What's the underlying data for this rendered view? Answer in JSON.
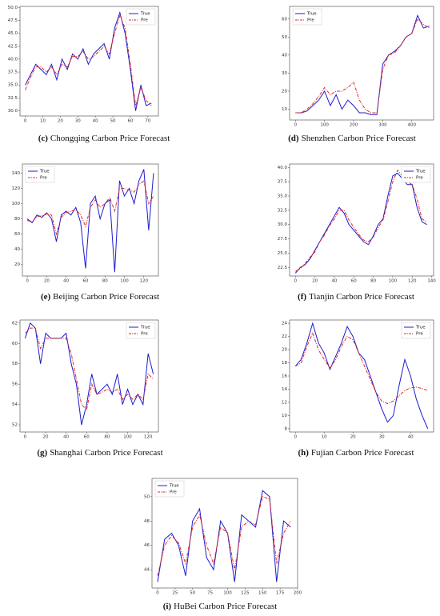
{
  "chart_data": [
    {
      "type": "line",
      "label": "(c)",
      "caption": "Chongqing Carbon Price Forecast",
      "legend": "upper right",
      "x": [
        0,
        3,
        6,
        9,
        12,
        15,
        18,
        21,
        24,
        27,
        30,
        33,
        36,
        39,
        42,
        45,
        48,
        51,
        54,
        57,
        60,
        63,
        66,
        69,
        72
      ],
      "series": [
        {
          "name": "True",
          "color": "#1c1cd0",
          "values": [
            35,
            37,
            39,
            38,
            37,
            39,
            36,
            40,
            38,
            41,
            40,
            42,
            39,
            41,
            42,
            43,
            40,
            46,
            49,
            45,
            38,
            30,
            35,
            31,
            31.5
          ]
        },
        {
          "name": "Pre",
          "color": "#e02828",
          "values": [
            34,
            36.5,
            38.5,
            38.5,
            37.5,
            38.5,
            37,
            39,
            38.5,
            40.5,
            40.5,
            41.5,
            40,
            40.5,
            41.5,
            42.5,
            41,
            45,
            48.5,
            46,
            39,
            31,
            34.5,
            32,
            31
          ]
        }
      ],
      "xlim": [
        -3,
        76
      ],
      "xticks": [
        0,
        10,
        20,
        30,
        40,
        50,
        60,
        70
      ],
      "ylim": [
        29,
        50.2
      ],
      "yticks": [
        {
          "value": 30,
          "label": "30.0"
        },
        32.5,
        {
          "value": 35,
          "label": "35.0"
        },
        37.5,
        {
          "value": 40,
          "label": "40.0"
        },
        42.5,
        {
          "value": 45,
          "label": "45.0"
        },
        47.5,
        {
          "value": 50,
          "label": "50.0"
        }
      ]
    },
    {
      "type": "line",
      "label": "(d)",
      "caption": "Shenzhen Carbon Price Forecast",
      "legend": "upper left",
      "x": [
        0,
        20,
        40,
        60,
        80,
        100,
        120,
        140,
        160,
        180,
        200,
        220,
        240,
        260,
        280,
        300,
        320,
        340,
        360,
        380,
        400,
        420,
        440,
        460
      ],
      "series": [
        {
          "name": "True",
          "color": "#1c1cd0",
          "values": [
            8,
            8,
            9,
            12,
            15,
            20,
            12,
            18,
            10,
            15,
            12,
            8,
            8,
            7,
            7,
            35,
            40,
            42,
            45,
            50,
            52,
            62,
            55,
            56
          ]
        },
        {
          "name": "Pre",
          "color": "#e02828",
          "values": [
            8,
            8,
            10,
            13,
            17,
            22,
            18,
            20,
            20,
            22,
            25,
            15,
            10,
            8,
            8,
            32,
            40,
            41,
            45,
            50,
            52,
            60,
            57,
            55
          ]
        }
      ],
      "xlim": [
        -20,
        475
      ],
      "xticks": [
        0,
        100,
        200,
        300,
        400
      ],
      "ylim": [
        4,
        67
      ],
      "yticks": [
        10,
        20,
        30,
        40,
        50,
        60
      ]
    },
    {
      "type": "line",
      "label": "(e)",
      "caption": "Beijing Carbon Price Forecast",
      "legend": "upper left",
      "x": [
        0,
        5,
        10,
        15,
        20,
        25,
        30,
        35,
        40,
        45,
        50,
        55,
        60,
        65,
        70,
        75,
        80,
        85,
        90,
        95,
        100,
        105,
        110,
        115,
        120,
        125,
        130
      ],
      "series": [
        {
          "name": "True",
          "color": "#1c1cd0",
          "values": [
            80,
            75,
            85,
            82,
            88,
            80,
            50,
            85,
            90,
            85,
            95,
            75,
            15,
            100,
            110,
            80,
            100,
            105,
            10,
            130,
            110,
            120,
            100,
            130,
            145,
            65,
            140
          ]
        },
        {
          "name": "Pre",
          "color": "#e02828",
          "values": [
            78,
            76,
            83,
            84,
            86,
            85,
            60,
            82,
            88,
            90,
            92,
            85,
            70,
            95,
            105,
            95,
            100,
            108,
            90,
            120,
            120,
            118,
            115,
            125,
            130,
            100,
            110
          ]
        }
      ],
      "xlim": [
        -5,
        135
      ],
      "xticks": [
        0,
        20,
        40,
        60,
        80,
        100,
        120
      ],
      "ylim": [
        5,
        152
      ],
      "yticks": [
        20,
        40,
        60,
        80,
        100,
        120,
        140
      ]
    },
    {
      "type": "line",
      "label": "(f)",
      "caption": "Tianjin Carbon Price Forecast",
      "legend": "upper right",
      "x": [
        0,
        5,
        10,
        15,
        20,
        25,
        30,
        35,
        40,
        45,
        50,
        55,
        60,
        65,
        70,
        75,
        80,
        85,
        90,
        95,
        100,
        105,
        110,
        115,
        120,
        125,
        130,
        135
      ],
      "series": [
        {
          "name": "True",
          "color": "#1c1cd0",
          "values": [
            21.5,
            22.5,
            23,
            24,
            25.5,
            27,
            28.5,
            30,
            31.5,
            33,
            32,
            30,
            29,
            28,
            27,
            26.5,
            28,
            30,
            31,
            35,
            38.5,
            39,
            38,
            37,
            37,
            33,
            30.5,
            30
          ]
        },
        {
          "name": "Pre",
          "color": "#e02828",
          "values": [
            21.8,
            22.3,
            23.2,
            24.3,
            25.2,
            27,
            28.2,
            29.8,
            31,
            32.5,
            32.5,
            30.8,
            29.5,
            28.3,
            27.3,
            27,
            27.8,
            29.5,
            30.8,
            34,
            37.5,
            39.5,
            38.5,
            37.5,
            37,
            34.5,
            31,
            30.5
          ]
        }
      ],
      "xlim": [
        -6,
        142
      ],
      "xticks": [
        0,
        20,
        40,
        60,
        80,
        100,
        120,
        140
      ],
      "ylim": [
        21,
        40.6
      ],
      "yticks": [
        22.5,
        {
          "value": 25,
          "label": "25.0"
        },
        27.5,
        {
          "value": 30,
          "label": "30.0"
        },
        32.5,
        {
          "value": 35,
          "label": "35.0"
        },
        37.5,
        {
          "value": 40,
          "label": "40.0"
        }
      ]
    },
    {
      "type": "line",
      "label": "(g)",
      "caption": "Shanghai Carbon Price Forecast",
      "legend": "upper right",
      "x": [
        0,
        5,
        10,
        15,
        20,
        25,
        30,
        35,
        40,
        45,
        50,
        55,
        60,
        65,
        70,
        75,
        80,
        85,
        90,
        95,
        100,
        105,
        110,
        115,
        120,
        125
      ],
      "series": [
        {
          "name": "True",
          "color": "#1c1cd0",
          "values": [
            60.5,
            62,
            61.5,
            58,
            61,
            60.5,
            60.5,
            60.5,
            61,
            58,
            56,
            52,
            54,
            57,
            55,
            55.5,
            56,
            55,
            57,
            54,
            55.5,
            54,
            55,
            54,
            59,
            57
          ]
        },
        {
          "name": "Pre",
          "color": "#e02828",
          "values": [
            61,
            61.5,
            61.5,
            59.5,
            60.5,
            60.5,
            60.5,
            60.5,
            60.5,
            59,
            56.5,
            54,
            53.5,
            56,
            55,
            55.2,
            55.5,
            55.2,
            55.5,
            54.5,
            55,
            54.5,
            55,
            54.5,
            57,
            56.5
          ]
        }
      ],
      "xlim": [
        -5,
        130
      ],
      "xticks": [
        0,
        20,
        40,
        60,
        80,
        100,
        120
      ],
      "ylim": [
        51.3,
        62.3
      ],
      "yticks": [
        52,
        54,
        56,
        58,
        60,
        62
      ]
    },
    {
      "type": "line",
      "label": "(h)",
      "caption": "Fujian Carbon Price Forecast",
      "legend": "upper right",
      "x": [
        0,
        2,
        4,
        6,
        8,
        10,
        12,
        14,
        16,
        18,
        20,
        22,
        24,
        26,
        28,
        30,
        32,
        34,
        36,
        38,
        40,
        42,
        44,
        46
      ],
      "series": [
        {
          "name": "True",
          "color": "#1c1cd0",
          "values": [
            17.5,
            18.5,
            21,
            24,
            21,
            19.5,
            17,
            19,
            21,
            23.5,
            22,
            19.5,
            18.5,
            16,
            13.5,
            11,
            9,
            10,
            14.5,
            18.5,
            16,
            12.5,
            10,
            8
          ]
        },
        {
          "name": "Pre",
          "color": "#e02828",
          "values": [
            17.5,
            18,
            20.5,
            22.5,
            20,
            18.5,
            17.2,
            18.5,
            20.5,
            22,
            21.5,
            19.5,
            17.5,
            15.5,
            13.5,
            12.2,
            11.8,
            12.2,
            13,
            13.8,
            14.2,
            14.3,
            14.1,
            13.8
          ]
        }
      ],
      "xlim": [
        -2,
        48
      ],
      "xticks": [
        0,
        10,
        20,
        30,
        40
      ],
      "ylim": [
        7.5,
        24.5
      ],
      "yticks": [
        8,
        10,
        12,
        14,
        16,
        18,
        20,
        22,
        24
      ]
    },
    {
      "type": "line",
      "label": "(i)",
      "caption": "HuBei Carbon Price Forecast",
      "legend": "upper left",
      "x": [
        0,
        10,
        20,
        30,
        40,
        50,
        60,
        70,
        80,
        90,
        100,
        110,
        120,
        130,
        140,
        150,
        160,
        170,
        180,
        190
      ],
      "series": [
        {
          "name": "True",
          "color": "#1c1cd0",
          "values": [
            43,
            46.5,
            47,
            46,
            43.5,
            48,
            49,
            45,
            44,
            48,
            47,
            43,
            48.5,
            48,
            47.5,
            50.5,
            50,
            43,
            48,
            47.5
          ]
        },
        {
          "name": "Pre",
          "color": "#e02828",
          "values": [
            43.5,
            46,
            46.8,
            46.2,
            44.5,
            47.5,
            48.5,
            46,
            44.5,
            47.5,
            47,
            44,
            47.5,
            48,
            47.7,
            50,
            49.8,
            44.5,
            47,
            48
          ]
        }
      ],
      "xlim": [
        -8,
        200
      ],
      "xticks": [
        0,
        25,
        50,
        75,
        100,
        125,
        150,
        175,
        200
      ],
      "ylim": [
        42.5,
        51.5
      ],
      "yticks": [
        44,
        46,
        48,
        50
      ]
    }
  ]
}
